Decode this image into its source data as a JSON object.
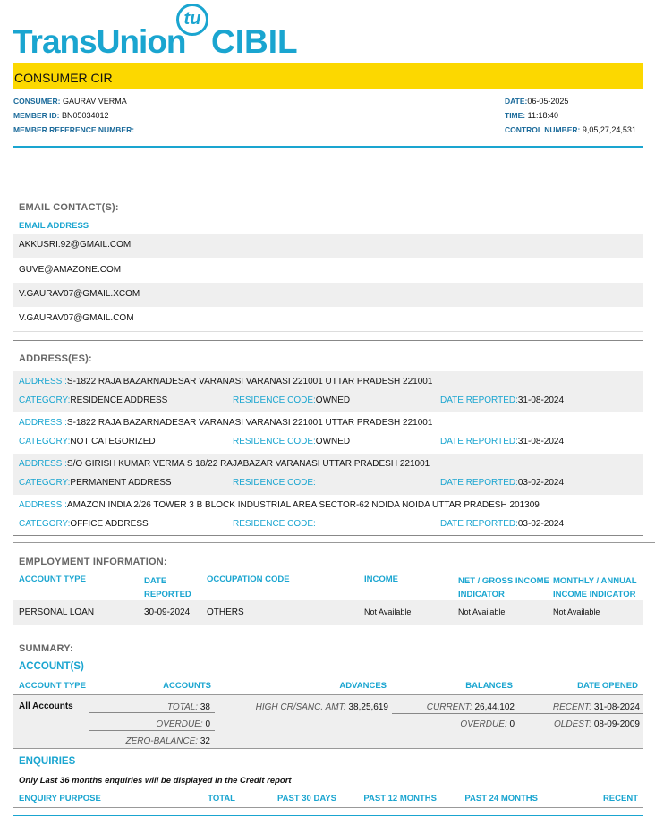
{
  "logo": {
    "brand": "TransUnion",
    "mark": "tu",
    "product": "CIBIL"
  },
  "title": "CONSUMER CIR",
  "header": {
    "consumer_label": "CONSUMER:",
    "consumer": "GAURAV VERMA",
    "member_id_label": "MEMBER ID:",
    "member_id": "BN05034012",
    "member_ref_label": "MEMBER REFERENCE NUMBER:",
    "date_label": "DATE:",
    "date": "06-05-2025",
    "time_label": "TIME:",
    "time": "11:18:40",
    "control_label": "CONTROL NUMBER:",
    "control": "9,05,27,24,531"
  },
  "emails": {
    "title": "EMAIL CONTACT(S):",
    "column": "EMAIL ADDRESS",
    "items": [
      "AKKUSRI.92@GMAIL.COM",
      "GUVE@AMAZONE.COM",
      "V.GAURAV07@GMAIL.XCOM",
      "V.GAURAV07@GMAIL.COM"
    ]
  },
  "addresses": {
    "title": "ADDRESS(ES):",
    "address_label": "ADDRESS :",
    "category_label": "CATEGORY:",
    "residence_label": "RESIDENCE CODE:",
    "date_label": "DATE REPORTED:",
    "items": [
      {
        "address": "S-1822 RAJA BAZARNADESAR VARANASI VARANASI 221001 UTTAR PRADESH 221001",
        "category": "RESIDENCE ADDRESS",
        "residence": "OWNED",
        "date": "31-08-2024"
      },
      {
        "address": "S-1822 RAJA BAZARNADESAR VARANASI VARANASI 221001 UTTAR PRADESH 221001",
        "category": "NOT CATEGORIZED",
        "residence": "OWNED",
        "date": "31-08-2024"
      },
      {
        "address": "S/O GIRISH KUMAR VERMA S 18/22 RAJABAZAR VARANASI UTTAR PRADESH 221001",
        "category": "PERMANENT ADDRESS",
        "residence": "",
        "date": "03-02-2024"
      },
      {
        "address": "AMAZON INDIA 2/26 TOWER 3 B BLOCK INDUSTRIAL AREA SECTOR-62 NOIDA NOIDA UTTAR PRADESH 201309",
        "category": "OFFICE ADDRESS",
        "residence": "",
        "date": "03-02-2024"
      }
    ]
  },
  "employment": {
    "title": "EMPLOYMENT INFORMATION:",
    "headers": [
      "ACCOUNT TYPE",
      "DATE",
      "REPORTED",
      "OCCUPATION CODE",
      "INCOME",
      "NET / GROSS INCOME",
      "INDICATOR",
      "MONTHLY / ANNUAL",
      "INCOME INDICATOR"
    ],
    "row": {
      "account_type": "PERSONAL LOAN",
      "date": "30-09-2024",
      "occupation": "OTHERS",
      "income": "Not Available",
      "net_gross": "Not Available",
      "monthly_annual": "Not Available"
    }
  },
  "summary": {
    "title": "SUMMARY:",
    "accounts_title": "ACCOUNT(S)",
    "headers": [
      "ACCOUNT TYPE",
      "ACCOUNTS",
      "ADVANCES",
      "BALANCES",
      "DATE OPENED"
    ],
    "row_label": "All Accounts",
    "total_label": "TOTAL:",
    "total": "38",
    "overdue_label": "OVERDUE:",
    "overdue": "0",
    "zero_label": "ZERO-BALANCE:",
    "zero": "32",
    "high_label": "HIGH CR/SANC. AMT:",
    "high": "38,25,619",
    "current_label": "CURRENT:",
    "current": "26,44,102",
    "bal_overdue_label": "OVERDUE:",
    "bal_overdue": "0",
    "recent_label": "RECENT:",
    "recent": "31-08-2024",
    "oldest_label": "OLDEST:",
    "oldest": "08-09-2009"
  },
  "enquiries": {
    "title": "ENQUIRIES",
    "note": "Only Last 36 months enquiries will be displayed in the Credit report",
    "headers": [
      "ENQUIRY PURPOSE",
      "TOTAL",
      "PAST 30 DAYS",
      "PAST 12 MONTHS",
      "PAST 24 MONTHS",
      "RECENT"
    ]
  },
  "colors": {
    "brand_blue": "#1aa5d0",
    "yellow": "#fcd800"
  }
}
